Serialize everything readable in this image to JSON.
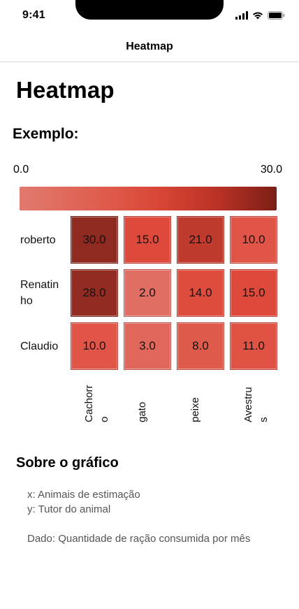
{
  "status_bar": {
    "time": "9:41"
  },
  "nav": {
    "title": "Heatmap"
  },
  "page": {
    "title": "Heatmap",
    "section_title": "Exemplo:"
  },
  "scale": {
    "min_label": "0.0",
    "max_label": "30.0",
    "min": 0,
    "max": 30
  },
  "chart_data": {
    "type": "heatmap",
    "rows": [
      "roberto",
      "Renatinho",
      "Claudio"
    ],
    "row_labels_display": [
      "roberto",
      "Renatin\nho",
      "Claudio"
    ],
    "columns": [
      "Cachorro",
      "gato",
      "peixe",
      "Avestrus"
    ],
    "column_labels_display": [
      "Cachorr\no",
      "gato",
      "peixe",
      "Avestru\ns"
    ],
    "values": [
      [
        30.0,
        15.0,
        21.0,
        10.0
      ],
      [
        28.0,
        2.0,
        14.0,
        15.0
      ],
      [
        10.0,
        3.0,
        8.0,
        11.0
      ]
    ],
    "value_labels": [
      [
        "30.0",
        "15.0",
        "21.0",
        "10.0"
      ],
      [
        "28.0",
        "2.0",
        "14.0",
        "15.0"
      ],
      [
        "10.0",
        "3.0",
        "8.0",
        "11.0"
      ]
    ],
    "colors": {
      "30.0": "#8e2a20",
      "28.0": "#922c22",
      "21.0": "#c03a2d",
      "15.0": "#dd4a3b",
      "14.0": "#de4c3d",
      "11.0": "#df5244",
      "10.0": "#e05548",
      "8.0": "#e05a4c",
      "3.0": "#e1665b",
      "2.0": "#e06e63"
    }
  },
  "about": {
    "title": "Sobre o gráfico",
    "x_line": "x: Animais de estimação",
    "y_line": "y: Tutor do animal",
    "data_line": "Dado: Quantidade de ração consumida por mês"
  }
}
